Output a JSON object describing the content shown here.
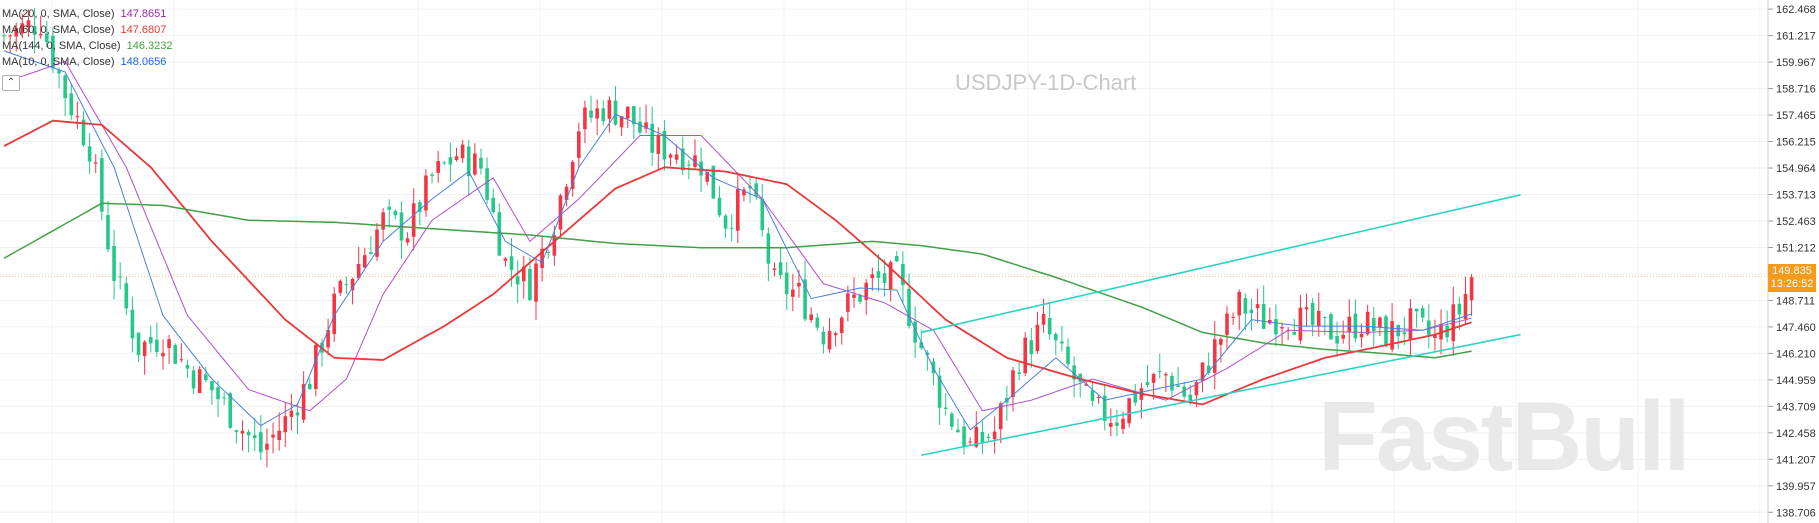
{
  "legend": [
    {
      "label": "MA(20, 0, SMA, Close)",
      "value": "147.8651",
      "color": "#9c27b0"
    },
    {
      "label": "MA(60, 0, SMA, Close)",
      "value": "147.6807",
      "color": "#e53935"
    },
    {
      "label": "MA(144, 0, SMA, Close)",
      "value": "146.3232",
      "color": "#43a047"
    },
    {
      "label": "MA(10, 0, SMA, Close)",
      "value": "148.0656",
      "color": "#1e63e9"
    }
  ],
  "collapse_icon": "chevron-up-icon",
  "chart_title": "USDJPY-1D-Chart",
  "watermark": "FastBull",
  "current_price": {
    "price": "149.835",
    "countdown": "13:26:52",
    "value": 149.835
  },
  "chart_data": {
    "type": "candlestick",
    "title": "USDJPY-1D-Chart",
    "ylim": [
      138.2,
      162.9
    ],
    "y_ticks": [
      "162.468",
      "161.217",
      "159.967",
      "158.716",
      "157.465",
      "156.215",
      "154.964",
      "153.713",
      "152.463",
      "151.212",
      "149.961",
      "148.711",
      "147.460",
      "146.210",
      "144.959",
      "143.709",
      "142.458",
      "141.207",
      "139.957",
      "138.706"
    ],
    "tick_values": [
      162.468,
      161.217,
      159.967,
      158.716,
      157.465,
      156.215,
      154.964,
      153.713,
      152.463,
      151.212,
      149.961,
      148.711,
      147.46,
      146.21,
      144.959,
      143.709,
      142.458,
      141.207,
      139.957,
      138.706
    ],
    "bars": 255,
    "close_anchors": [
      [
        0,
        161.2
      ],
      [
        6,
        161.9
      ],
      [
        10,
        158.5
      ],
      [
        14,
        156.0
      ],
      [
        18,
        150.0
      ],
      [
        22,
        146.5
      ],
      [
        26,
        147.0
      ],
      [
        30,
        145.5
      ],
      [
        34,
        144.5
      ],
      [
        38,
        143.0
      ],
      [
        42,
        141.6
      ],
      [
        46,
        143.0
      ],
      [
        50,
        145.0
      ],
      [
        54,
        148.5
      ],
      [
        58,
        150.5
      ],
      [
        62,
        152.5
      ],
      [
        66,
        152.0
      ],
      [
        70,
        154.5
      ],
      [
        74,
        155.6
      ],
      [
        78,
        155.0
      ],
      [
        82,
        150.5
      ],
      [
        86,
        149.5
      ],
      [
        90,
        152.5
      ],
      [
        94,
        157.0
      ],
      [
        98,
        157.8
      ],
      [
        102,
        157.5
      ],
      [
        106,
        156.0
      ],
      [
        110,
        155.8
      ],
      [
        114,
        155.2
      ],
      [
        118,
        152.5
      ],
      [
        122,
        154.0
      ],
      [
        126,
        149.5
      ],
      [
        130,
        149.0
      ],
      [
        134,
        147.2
      ],
      [
        138,
        148.5
      ],
      [
        142,
        149.6
      ],
      [
        146,
        149.8
      ],
      [
        150,
        146.5
      ],
      [
        154,
        143.5
      ],
      [
        158,
        141.8
      ],
      [
        162,
        142.5
      ],
      [
        166,
        146.0
      ],
      [
        170,
        147.5
      ],
      [
        174,
        145.5
      ],
      [
        178,
        143.5
      ],
      [
        182,
        143.2
      ],
      [
        186,
        144.6
      ],
      [
        190,
        145.2
      ],
      [
        194,
        144.0
      ],
      [
        198,
        146.5
      ],
      [
        202,
        148.5
      ],
      [
        206,
        147.8
      ],
      [
        210,
        148.0
      ],
      [
        214,
        147.5
      ],
      [
        218,
        147.2
      ],
      [
        222,
        147.7
      ],
      [
        226,
        147.1
      ],
      [
        230,
        147.6
      ],
      [
        234,
        146.9
      ],
      [
        238,
        148.2
      ],
      [
        240,
        149.835
      ]
    ],
    "ma_series": [
      {
        "period": 20,
        "anchors": [
          [
            0,
            159.0
          ],
          [
            10,
            160.0
          ],
          [
            20,
            155.0
          ],
          [
            30,
            148.0
          ],
          [
            40,
            144.5
          ],
          [
            50,
            143.5
          ],
          [
            56,
            145.0
          ],
          [
            62,
            149.0
          ],
          [
            70,
            152.5
          ],
          [
            80,
            154.5
          ],
          [
            86,
            151.5
          ],
          [
            94,
            153.5
          ],
          [
            104,
            156.5
          ],
          [
            114,
            156.5
          ],
          [
            124,
            153.5
          ],
          [
            134,
            149.5
          ],
          [
            144,
            148.6
          ],
          [
            152,
            147.3
          ],
          [
            160,
            143.5
          ],
          [
            168,
            144.0
          ],
          [
            178,
            145.0
          ],
          [
            190,
            144.0
          ],
          [
            200,
            145.5
          ],
          [
            210,
            147.3
          ],
          [
            222,
            147.2
          ],
          [
            232,
            147.3
          ],
          [
            240,
            147.87
          ]
        ]
      },
      {
        "period": 60,
        "anchors": [
          [
            0,
            156.0
          ],
          [
            8,
            157.2
          ],
          [
            16,
            157.0
          ],
          [
            24,
            155.0
          ],
          [
            34,
            151.5
          ],
          [
            46,
            147.8
          ],
          [
            54,
            146.0
          ],
          [
            62,
            145.9
          ],
          [
            72,
            147.5
          ],
          [
            80,
            149.0
          ],
          [
            90,
            151.5
          ],
          [
            100,
            154.0
          ],
          [
            108,
            155.0
          ],
          [
            118,
            154.8
          ],
          [
            128,
            154.2
          ],
          [
            136,
            152.5
          ],
          [
            144,
            150.5
          ],
          [
            154,
            147.8
          ],
          [
            164,
            146.0
          ],
          [
            176,
            145.0
          ],
          [
            186,
            144.3
          ],
          [
            196,
            143.8
          ],
          [
            206,
            145.0
          ],
          [
            216,
            146.0
          ],
          [
            226,
            146.6
          ],
          [
            234,
            147.1
          ],
          [
            240,
            147.68
          ]
        ]
      },
      {
        "period": 144,
        "anchors": [
          [
            0,
            150.7
          ],
          [
            8,
            152.0
          ],
          [
            16,
            153.3
          ],
          [
            26,
            153.2
          ],
          [
            40,
            152.5
          ],
          [
            54,
            152.4
          ],
          [
            70,
            152.1
          ],
          [
            86,
            151.8
          ],
          [
            100,
            151.4
          ],
          [
            114,
            151.2
          ],
          [
            128,
            151.2
          ],
          [
            142,
            151.5
          ],
          [
            150,
            151.3
          ],
          [
            160,
            150.9
          ],
          [
            172,
            149.8
          ],
          [
            186,
            148.4
          ],
          [
            196,
            147.2
          ],
          [
            206,
            146.7
          ],
          [
            216,
            146.4
          ],
          [
            226,
            146.2
          ],
          [
            234,
            146.0
          ],
          [
            240,
            146.32
          ]
        ]
      },
      {
        "period": 10,
        "anchors": [
          [
            0,
            160.5
          ],
          [
            10,
            159.5
          ],
          [
            18,
            155.0
          ],
          [
            26,
            148.0
          ],
          [
            34,
            145.0
          ],
          [
            42,
            142.8
          ],
          [
            48,
            143.8
          ],
          [
            54,
            148.0
          ],
          [
            62,
            151.5
          ],
          [
            70,
            153.5
          ],
          [
            76,
            154.8
          ],
          [
            82,
            151.5
          ],
          [
            88,
            150.5
          ],
          [
            94,
            155.0
          ],
          [
            100,
            157.5
          ],
          [
            108,
            156.5
          ],
          [
            116,
            154.5
          ],
          [
            124,
            153.5
          ],
          [
            132,
            148.8
          ],
          [
            140,
            149.3
          ],
          [
            146,
            149.2
          ],
          [
            152,
            145.5
          ],
          [
            158,
            142.6
          ],
          [
            164,
            144.0
          ],
          [
            172,
            146.0
          ],
          [
            180,
            144.0
          ],
          [
            188,
            144.5
          ],
          [
            196,
            145.0
          ],
          [
            204,
            147.8
          ],
          [
            212,
            147.5
          ],
          [
            222,
            147.5
          ],
          [
            232,
            147.3
          ],
          [
            240,
            148.07
          ]
        ]
      }
    ],
    "trend_lines": [
      {
        "from": [
          150,
          147.2
        ],
        "to": [
          248,
          153.7
        ]
      },
      {
        "from": [
          150,
          141.4
        ],
        "to": [
          248,
          147.1
        ]
      }
    ]
  }
}
